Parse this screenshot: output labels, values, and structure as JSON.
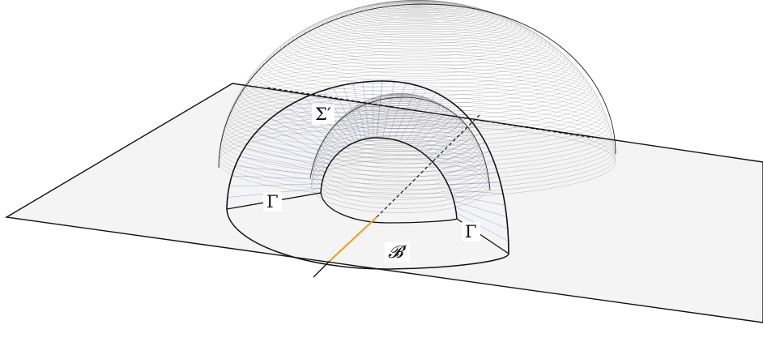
{
  "labels": {
    "sigma_prime": "Σ′",
    "gamma_left": "Γ",
    "gamma_right": "Γ",
    "b_prime": "𝓑′"
  },
  "colors": {
    "plane_fill": "#f4f4f4",
    "outline": "#111111",
    "mesh_lines": "#5a5a5a",
    "radial_lines": "#7b84e0",
    "highlight_segment": "#f0a020"
  }
}
